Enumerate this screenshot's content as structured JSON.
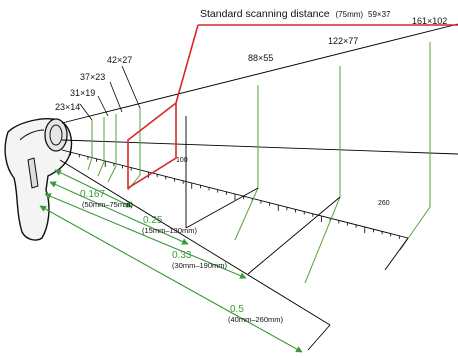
{
  "callout": {
    "label": "Standard scanning distance",
    "range": "(75mm)",
    "size": "59×37",
    "color": "#d42a2a"
  },
  "window_sizes": [
    "23×14",
    "31×19",
    "37×23",
    "42×27",
    "88×55",
    "122×77",
    "161×102"
  ],
  "ruler_labels": [
    "100",
    "260"
  ],
  "resolutions": [
    {
      "value": "0.167",
      "range": "(50mm–75mm)"
    },
    {
      "value": "0.25",
      "range": "(15mm–130mm)"
    },
    {
      "value": "0.33",
      "range": "(30mm–190mm)"
    },
    {
      "value": "0.5",
      "range": "(40mm–260mm)"
    }
  ],
  "colors": {
    "beam": "#000000",
    "window": "#5aa23a",
    "standard_window": "#d42a2a",
    "resolution": "#3a9a3a"
  }
}
